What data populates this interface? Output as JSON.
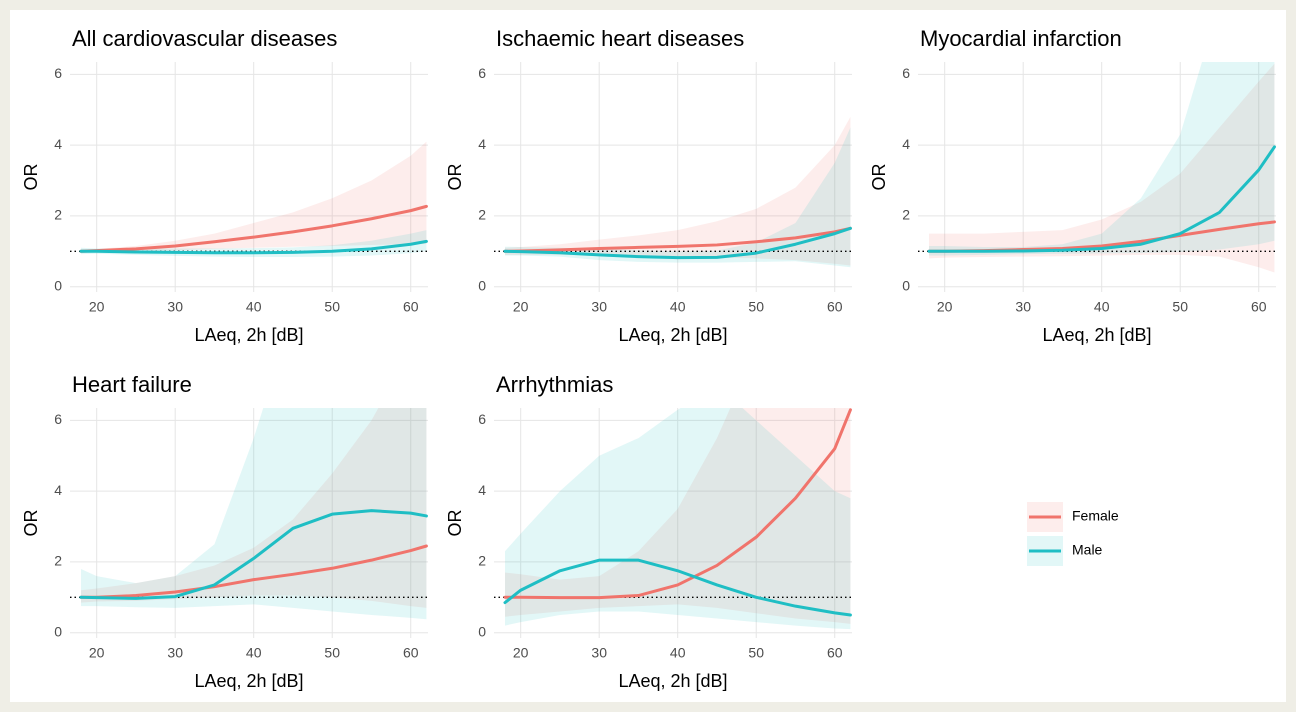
{
  "chart_data": [
    {
      "type": "line",
      "title": "All cardiovascular diseases",
      "xlabel": "LAeq, 2h [dB]",
      "ylabel": "OR",
      "x": [
        18,
        20,
        25,
        30,
        35,
        40,
        45,
        50,
        55,
        60,
        62
      ],
      "xlim": [
        16.6,
        62.2
      ],
      "ylim": [
        -0.15,
        6.35
      ],
      "xticks": [
        20,
        30,
        40,
        50,
        60
      ],
      "yticks": [
        0,
        2,
        4,
        6
      ],
      "grid": true,
      "refline": 1,
      "series": [
        {
          "values": [
            1.0,
            1.02,
            1.07,
            1.15,
            1.27,
            1.4,
            1.55,
            1.72,
            1.92,
            2.15,
            2.27
          ],
          "lower": [
            0.95,
            0.97,
            1.0,
            1.03,
            1.07,
            1.1,
            1.13,
            1.15,
            1.18,
            1.2,
            1.21
          ],
          "upper": [
            1.05,
            1.07,
            1.15,
            1.3,
            1.5,
            1.8,
            2.1,
            2.5,
            3.0,
            3.7,
            4.1
          ]
        },
        {
          "values": [
            1.0,
            1.0,
            0.98,
            0.97,
            0.96,
            0.96,
            0.97,
            1.0,
            1.07,
            1.2,
            1.28
          ],
          "lower": [
            0.92,
            0.93,
            0.9,
            0.87,
            0.85,
            0.84,
            0.84,
            0.85,
            0.88,
            0.95,
            1.0
          ],
          "upper": [
            1.1,
            1.08,
            1.07,
            1.08,
            1.08,
            1.09,
            1.11,
            1.17,
            1.3,
            1.5,
            1.6
          ]
        }
      ]
    },
    {
      "type": "line",
      "title": "Ischaemic heart diseases",
      "xlabel": "LAeq, 2h [dB]",
      "ylabel": "OR",
      "x": [
        18,
        20,
        25,
        30,
        35,
        40,
        45,
        50,
        55,
        60,
        62
      ],
      "xlim": [
        16.6,
        62.2
      ],
      "ylim": [
        -0.15,
        6.35
      ],
      "xticks": [
        20,
        30,
        40,
        50,
        60
      ],
      "yticks": [
        0,
        2,
        4,
        6
      ],
      "grid": true,
      "refline": 1,
      "series": [
        {
          "values": [
            1.0,
            1.01,
            1.04,
            1.08,
            1.11,
            1.14,
            1.18,
            1.27,
            1.38,
            1.55,
            1.65
          ],
          "lower": [
            0.9,
            0.9,
            0.9,
            0.88,
            0.86,
            0.84,
            0.82,
            0.8,
            0.75,
            0.65,
            0.6
          ],
          "upper": [
            1.1,
            1.12,
            1.2,
            1.33,
            1.45,
            1.6,
            1.85,
            2.2,
            2.8,
            4.0,
            4.8
          ]
        },
        {
          "values": [
            1.0,
            0.99,
            0.96,
            0.9,
            0.85,
            0.82,
            0.83,
            0.95,
            1.2,
            1.5,
            1.65
          ],
          "lower": [
            0.88,
            0.88,
            0.85,
            0.75,
            0.7,
            0.68,
            0.68,
            0.7,
            0.72,
            0.6,
            0.55
          ],
          "upper": [
            1.13,
            1.12,
            1.1,
            1.07,
            1.03,
            1.0,
            1.02,
            1.25,
            1.8,
            3.5,
            4.5
          ]
        }
      ]
    },
    {
      "type": "line",
      "title": "Myocardial infarction",
      "xlabel": "LAeq, 2h [dB]",
      "ylabel": "OR",
      "x": [
        18,
        20,
        25,
        30,
        35,
        40,
        45,
        50,
        55,
        60,
        62
      ],
      "xlim": [
        16.6,
        62.2
      ],
      "ylim": [
        -0.15,
        6.35
      ],
      "xticks": [
        20,
        30,
        40,
        50,
        60
      ],
      "yticks": [
        0,
        2,
        4,
        6
      ],
      "grid": true,
      "refline": 1,
      "series": [
        {
          "values": [
            1.0,
            1.0,
            1.02,
            1.05,
            1.08,
            1.15,
            1.28,
            1.45,
            1.62,
            1.78,
            1.83
          ],
          "lower": [
            0.8,
            0.82,
            0.84,
            0.85,
            0.86,
            0.88,
            0.9,
            0.9,
            0.85,
            0.55,
            0.4
          ],
          "upper": [
            1.5,
            1.5,
            1.5,
            1.55,
            1.6,
            1.9,
            2.4,
            3.2,
            4.5,
            5.8,
            6.3
          ]
        },
        {
          "values": [
            1.0,
            1.0,
            1.0,
            1.01,
            1.03,
            1.08,
            1.2,
            1.5,
            2.1,
            3.3,
            3.95
          ],
          "lower": [
            0.88,
            0.88,
            0.9,
            0.92,
            0.93,
            0.94,
            0.95,
            0.98,
            1.05,
            1.2,
            1.3
          ],
          "upper": [
            1.15,
            1.15,
            1.12,
            1.12,
            1.2,
            1.5,
            2.5,
            4.3,
            8,
            12,
            14
          ]
        }
      ]
    },
    {
      "type": "line",
      "title": "Heart failure",
      "xlabel": "LAeq, 2h [dB]",
      "ylabel": "OR",
      "x": [
        18,
        20,
        25,
        30,
        35,
        40,
        45,
        50,
        55,
        60,
        62
      ],
      "xlim": [
        16.6,
        62.2
      ],
      "ylim": [
        -0.15,
        6.35
      ],
      "xticks": [
        20,
        30,
        40,
        50,
        60
      ],
      "yticks": [
        0,
        2,
        4,
        6
      ],
      "grid": true,
      "refline": 1,
      "series": [
        {
          "values": [
            1.0,
            1.0,
            1.05,
            1.15,
            1.3,
            1.5,
            1.65,
            1.82,
            2.05,
            2.32,
            2.45
          ],
          "lower": [
            0.85,
            0.88,
            0.9,
            0.95,
            1.0,
            1.05,
            1.05,
            1.0,
            0.9,
            0.75,
            0.7
          ],
          "upper": [
            1.2,
            1.25,
            1.4,
            1.6,
            1.9,
            2.4,
            3.2,
            4.5,
            6,
            8,
            9
          ]
        },
        {
          "values": [
            1.0,
            0.99,
            0.97,
            1.02,
            1.35,
            2.1,
            2.95,
            3.35,
            3.45,
            3.38,
            3.3
          ],
          "lower": [
            0.75,
            0.75,
            0.72,
            0.7,
            0.75,
            0.8,
            0.7,
            0.6,
            0.5,
            0.42,
            0.38
          ],
          "upper": [
            1.8,
            1.6,
            1.4,
            1.6,
            2.5,
            5.5,
            9,
            10,
            10,
            10,
            10
          ]
        }
      ]
    },
    {
      "type": "line",
      "title": "Arrhythmias",
      "xlabel": "LAeq, 2h [dB]",
      "ylabel": "OR",
      "x": [
        18,
        20,
        25,
        30,
        35,
        40,
        45,
        50,
        55,
        60,
        62
      ],
      "xlim": [
        16.6,
        62.2
      ],
      "ylim": [
        -0.15,
        6.35
      ],
      "xticks": [
        20,
        30,
        40,
        50,
        60
      ],
      "yticks": [
        0,
        2,
        4,
        6
      ],
      "grid": true,
      "refline": 1,
      "series": [
        {
          "values": [
            1.0,
            1.0,
            0.99,
            0.99,
            1.05,
            1.35,
            1.9,
            2.7,
            3.8,
            5.2,
            6.3
          ],
          "lower": [
            0.45,
            0.5,
            0.6,
            0.7,
            0.75,
            0.8,
            0.7,
            0.55,
            0.4,
            0.3,
            0.25
          ],
          "upper": [
            1.7,
            1.65,
            1.5,
            1.6,
            2.3,
            3.5,
            5.5,
            8,
            10,
            12,
            13
          ]
        },
        {
          "values": [
            0.85,
            1.2,
            1.75,
            2.05,
            2.05,
            1.75,
            1.35,
            1.0,
            0.75,
            0.56,
            0.5
          ],
          "lower": [
            0.2,
            0.3,
            0.5,
            0.6,
            0.6,
            0.5,
            0.4,
            0.3,
            0.2,
            0.12,
            0.1
          ],
          "upper": [
            2.3,
            2.8,
            4,
            5,
            5.5,
            6.3,
            7,
            6,
            5,
            4,
            3.8
          ]
        }
      ]
    }
  ],
  "legend": {
    "position": "right",
    "series": [
      {
        "name": "Female",
        "color": "#f0746c"
      },
      {
        "name": "Male",
        "color": "#1fbec4"
      }
    ]
  }
}
